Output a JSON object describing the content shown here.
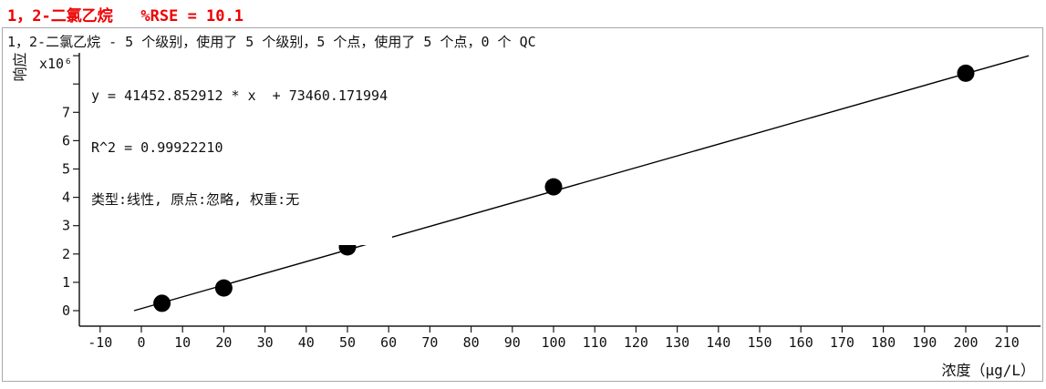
{
  "colors": {
    "title_red": "#ee0000",
    "axis": "#1a1a1a",
    "point": "#000000",
    "fit_line": "#000000",
    "panel_border": "#a8a8a8"
  },
  "header": {
    "title": "1，2-二氯乙烷   %RSE = 10.1"
  },
  "chart": {
    "subtitle": "1，2-二氯乙烷 - 5 个级别，使用了 5 个级别，5 个点，使用了 5 个点，0 个 QC",
    "equation_line1": "y = 41452.852912 * x  + 73460.171994",
    "equation_line2": "R^2 = 0.99922210",
    "equation_line3": "类型:线性, 原点:忽略, 权重:无",
    "y_axis_label": "响应",
    "y_axis_multiplier": "x10⁶",
    "x_axis_label": "浓度（µg/L）"
  },
  "chart_data": {
    "type": "scatter",
    "title": "1，2-二氯乙烷   %RSE = 10.1",
    "xlabel": "浓度（µg/L）",
    "ylabel": "响应",
    "y_unit_multiplier": 1000000,
    "x": [
      5,
      20,
      50,
      100,
      200
    ],
    "y": [
      260000,
      800000,
      2250000,
      4370000,
      8380000
    ],
    "fit": {
      "kind": "linear",
      "equation": "y = 41452.852912 * x  + 73460.171994",
      "slope": 41452.852912,
      "intercept": 73460.171994,
      "r_squared": 0.9992221,
      "rse_percent": 10.1,
      "type_label": "线性",
      "origin_label": "忽略",
      "weight_label": "无",
      "line_x_range": [
        -1.77,
        215.3
      ]
    },
    "x_ticks": [
      -10,
      0,
      10,
      20,
      30,
      40,
      50,
      60,
      70,
      80,
      90,
      100,
      110,
      120,
      130,
      140,
      150,
      160,
      170,
      180,
      190,
      200,
      210
    ],
    "y_ticks_labeled_millions": [
      0,
      1,
      2,
      3,
      4,
      5,
      6,
      7
    ],
    "y_ticks_unlabeled_millions": [
      8,
      9
    ],
    "xlim": [
      -15,
      218
    ],
    "ylim": [
      0,
      9100000
    ],
    "grid": false,
    "legend": false
  }
}
